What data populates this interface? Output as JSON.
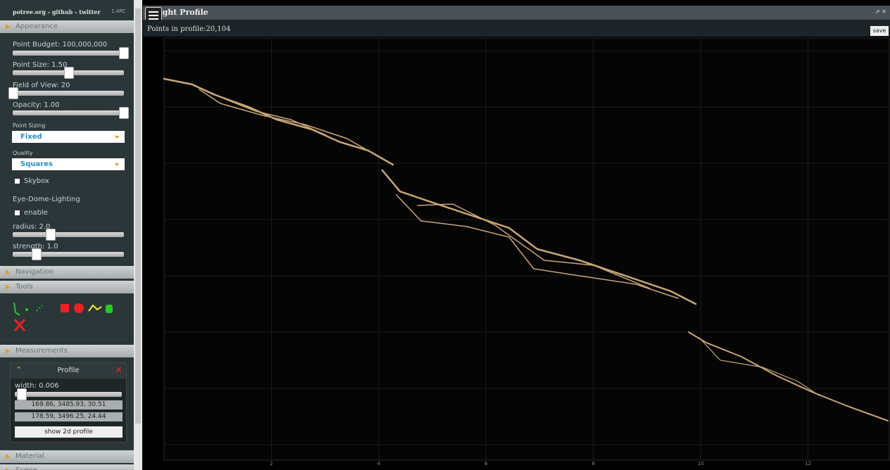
{
  "sidebar": {
    "header": {
      "links": "potree.org - github - twitter",
      "version": "1.4RC"
    },
    "appearance": {
      "title": "Appearance",
      "point_budget": "Point Budget: 100,000,000",
      "point_size": "Point Size: 1.50",
      "field_of_view": "Field of View: 20",
      "opacity": "Opacity: 1.00",
      "point_sizing_label": "Point Sizing",
      "point_sizing_value": "Fixed",
      "quality_label": "Quality",
      "quality_value": "Squares",
      "skybox": "Skybox",
      "edl_title": "Eye-Dome-Lighting",
      "edl_enable": "enable",
      "radius": "radius: 2.0",
      "strength": "strength: 1.0"
    },
    "sections": [
      "Navigation",
      "Tools",
      "Measurements",
      "Material",
      "Scene"
    ],
    "profile": {
      "title": "Profile",
      "width": "width: 0.006",
      "point_1": "169.86, 3485.93, 30.51",
      "point_2": "178.59, 3496.25, 24.44",
      "button": "show 2d profile"
    }
  },
  "height_profile": {
    "title": "Height Profile",
    "points_in_profile": "Points in profile:20,104",
    "save": "save",
    "xlim": [
      0,
      13.5
    ],
    "xticks": [
      2,
      4,
      6,
      8,
      10,
      12
    ]
  }
}
